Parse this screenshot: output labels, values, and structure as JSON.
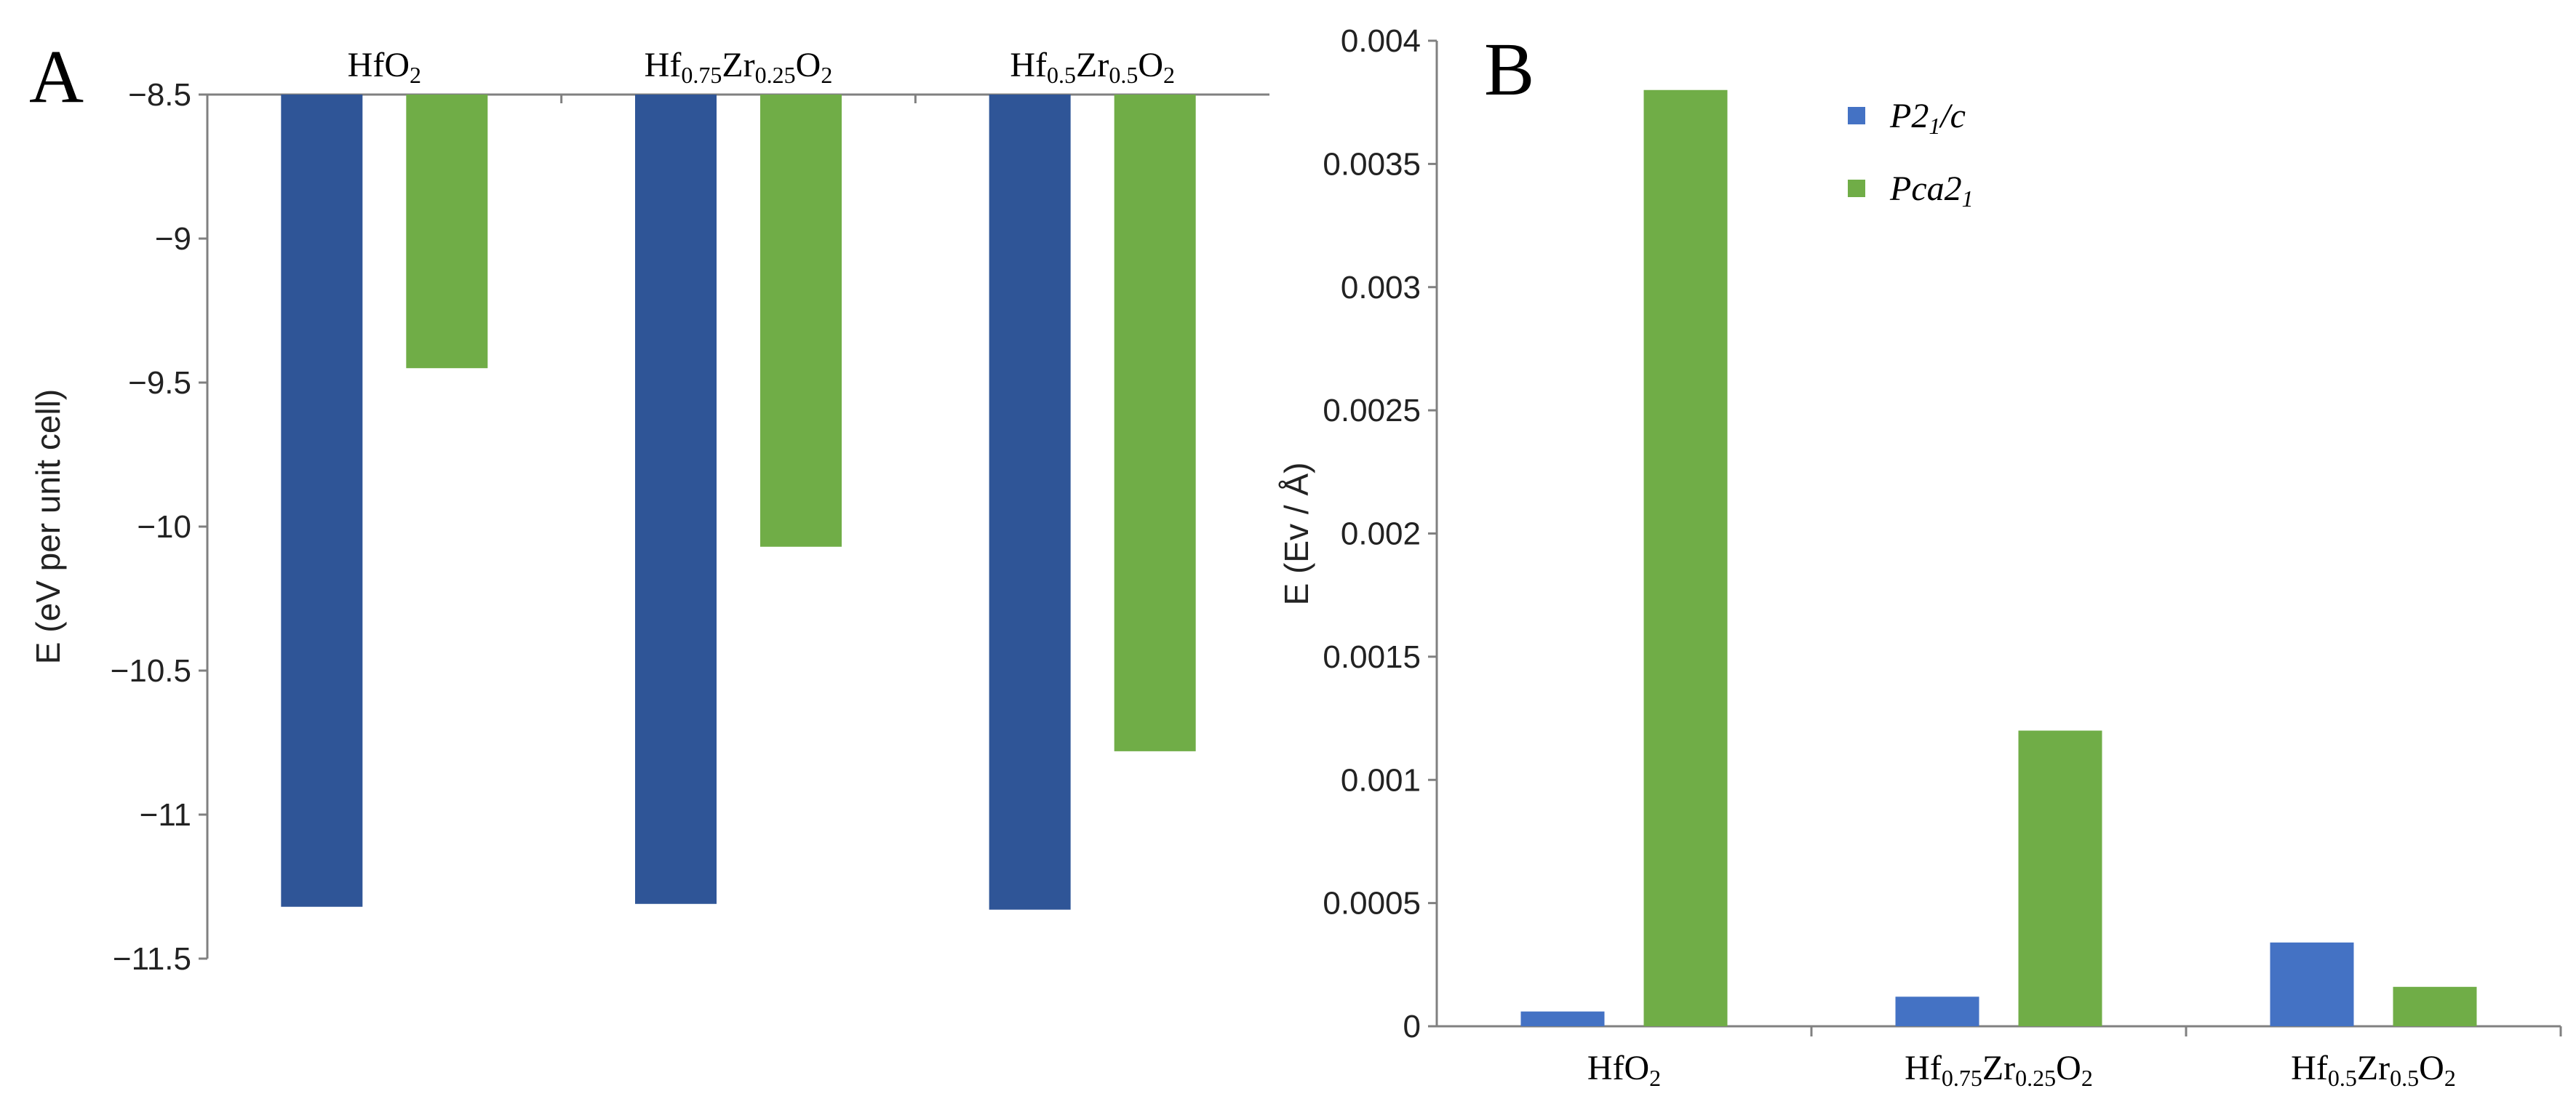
{
  "chart_data": [
    {
      "panel": "A",
      "type": "bar",
      "ylabel": "E (eV per unit cell)",
      "ylim": [
        -11.5,
        -8.5
      ],
      "yticks": [
        -8.5,
        -9,
        -9.5,
        -10,
        -10.5,
        -11,
        -11.5
      ],
      "ytick_labels": [
        "−8.5",
        "−9",
        "−9.5",
        "−10",
        "−10.5",
        "−11",
        "−11.5"
      ],
      "categories": [
        [
          {
            "t": "Hf"
          },
          {
            "t": "O"
          },
          {
            "t": "2",
            "sub": true
          }
        ],
        [
          {
            "t": "Hf"
          },
          {
            "t": "0.75",
            "sub": true
          },
          {
            "t": "Zr"
          },
          {
            "t": "0.25",
            "sub": true
          },
          {
            "t": "O"
          },
          {
            "t": "2",
            "sub": true
          }
        ],
        [
          {
            "t": "Hf"
          },
          {
            "t": "0.5",
            "sub": true
          },
          {
            "t": "Zr"
          },
          {
            "t": "0.5",
            "sub": true
          },
          {
            "t": "O"
          },
          {
            "t": "2",
            "sub": true
          }
        ]
      ],
      "category_position": "top",
      "series": [
        {
          "name": "P21/c",
          "color": "#2F5597",
          "values": [
            -11.32,
            -11.31,
            -11.33
          ]
        },
        {
          "name": "Pca21",
          "color": "#70AD47",
          "values": [
            -9.45,
            -10.07,
            -10.78
          ]
        }
      ]
    },
    {
      "panel": "B",
      "type": "bar",
      "ylabel": "E (Ev / Å)",
      "ylim": [
        0,
        0.004
      ],
      "yticks": [
        0,
        0.0005,
        0.001,
        0.0015,
        0.002,
        0.0025,
        0.003,
        0.0035,
        0.004
      ],
      "ytick_labels": [
        "0",
        "0.0005",
        "0.001",
        "0.0015",
        "0.002",
        "0.0025",
        "0.003",
        "0.0035",
        "0.004"
      ],
      "categories": [
        [
          {
            "t": "Hf"
          },
          {
            "t": "O"
          },
          {
            "t": "2",
            "sub": true
          }
        ],
        [
          {
            "t": "Hf"
          },
          {
            "t": "0.75",
            "sub": true
          },
          {
            "t": "Zr"
          },
          {
            "t": "0.25",
            "sub": true
          },
          {
            "t": "O"
          },
          {
            "t": "2",
            "sub": true
          }
        ],
        [
          {
            "t": "Hf"
          },
          {
            "t": "0.5",
            "sub": true
          },
          {
            "t": "Zr"
          },
          {
            "t": "0.5",
            "sub": true
          },
          {
            "t": "O"
          },
          {
            "t": "2",
            "sub": true
          }
        ]
      ],
      "category_position": "bottom",
      "legend": [
        {
          "parts": [
            {
              "t": "P2"
            },
            {
              "t": "1",
              "sub": true
            },
            {
              "t": "/c"
            }
          ],
          "color": "#4472C4"
        },
        {
          "parts": [
            {
              "t": "Pca2"
            },
            {
              "t": "1",
              "sub": true
            }
          ],
          "color": "#70AD47"
        }
      ],
      "series": [
        {
          "name": "P21/c",
          "color": "#4472C4",
          "values": [
            6e-05,
            0.00012,
            0.00034
          ]
        },
        {
          "name": "Pca21",
          "color": "#70AD47",
          "values": [
            0.0038,
            0.0012,
            0.00016
          ]
        }
      ]
    }
  ]
}
